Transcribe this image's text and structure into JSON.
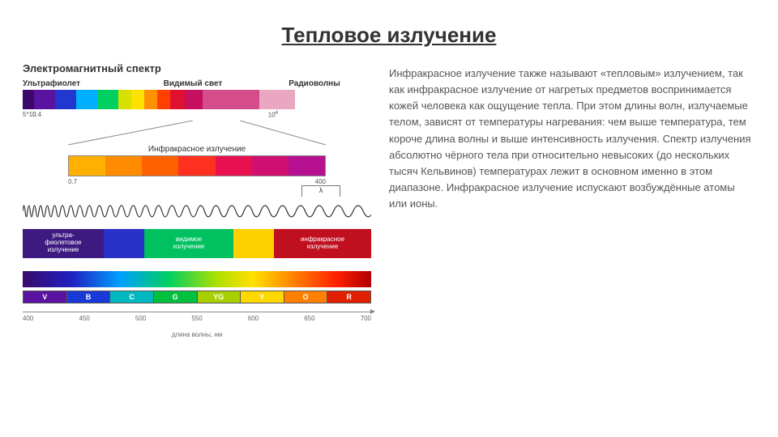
{
  "title": "Тепловое излучение",
  "spectrum_section_title": "Электромагнитный спектр",
  "top_band": {
    "labels": {
      "uv": "Ультрафиолет",
      "vis": "Видимый свет",
      "radio": "Радиоволны"
    },
    "segments": [
      {
        "color": "#3b0869",
        "w": 14
      },
      {
        "color": "#5a12a0",
        "w": 26
      },
      {
        "color": "#2038d0",
        "w": 26
      },
      {
        "color": "#00b0ff",
        "w": 26
      },
      {
        "color": "#00d060",
        "w": 26
      },
      {
        "color": "#d8e000",
        "w": 16
      },
      {
        "color": "#ffe000",
        "w": 16
      },
      {
        "color": "#ff9000",
        "w": 16
      },
      {
        "color": "#ff4000",
        "w": 16
      },
      {
        "color": "#e01030",
        "w": 18
      },
      {
        "color": "#c70f60",
        "w": 22
      },
      {
        "color": "#d44d8a",
        "w": 70
      },
      {
        "color": "#e9a7c2",
        "w": 44
      },
      {
        "color": "#ffffff",
        "w": 94
      }
    ],
    "ticks": {
      "t1": "5*10",
      "t2": "0.4",
      "t3": "10"
    }
  },
  "ir_band": {
    "label": "Инфракрасное излучение",
    "segments": [
      "#ffb000",
      "#ff8c00",
      "#ff6000",
      "#ff3020",
      "#e81050",
      "#d01070",
      "#b61090"
    ],
    "ticks": {
      "left": "0.7",
      "right": "400"
    }
  },
  "lambda": "λ",
  "labeled_band": [
    {
      "color": "#3d1a80",
      "w": 100,
      "text": "ультра-\nфиолетовое\nизлучение"
    },
    {
      "color": "#2830c8",
      "w": 50,
      "text": ""
    },
    {
      "color": "#00c060",
      "w": 110,
      "text": "видимое\nизлучение"
    },
    {
      "color": "#ffd000",
      "w": 50,
      "text": ""
    },
    {
      "color": "#c01020",
      "w": 120,
      "text": "инфракрасное\nизлучение"
    }
  ],
  "letters": [
    {
      "l": "V",
      "c": "#5a12a0"
    },
    {
      "l": "B",
      "c": "#1838d8"
    },
    {
      "l": "C",
      "c": "#00b8c0"
    },
    {
      "l": "G",
      "c": "#00c040"
    },
    {
      "l": "YG",
      "c": "#a8d000"
    },
    {
      "l": "Y",
      "c": "#ffd800"
    },
    {
      "l": "O",
      "c": "#ff8000"
    },
    {
      "l": "R",
      "c": "#e02000"
    }
  ],
  "axis": {
    "ticks": [
      "400",
      "450",
      "500",
      "550",
      "600",
      "650",
      "700"
    ],
    "label": "длина волны, нм"
  },
  "body_text": "Инфракрасное излучение также называют «тепловым» излучением, так как инфракрасное излучение от нагретых предметов воспринимается кожей человека как ощущение тепла. При этом длины волн, излучаемые телом, зависят от температуры нагревания: чем выше температура, тем короче длина волны и выше интенсивность излучения. Спектр излучения абсолютно чёрного тела при относительно невысоких (до нескольких тысяч Кельвинов) температурах лежит в основном именно в этом диапазоне. Инфракрасное излучение испускают возбуждённые атомы или ионы."
}
